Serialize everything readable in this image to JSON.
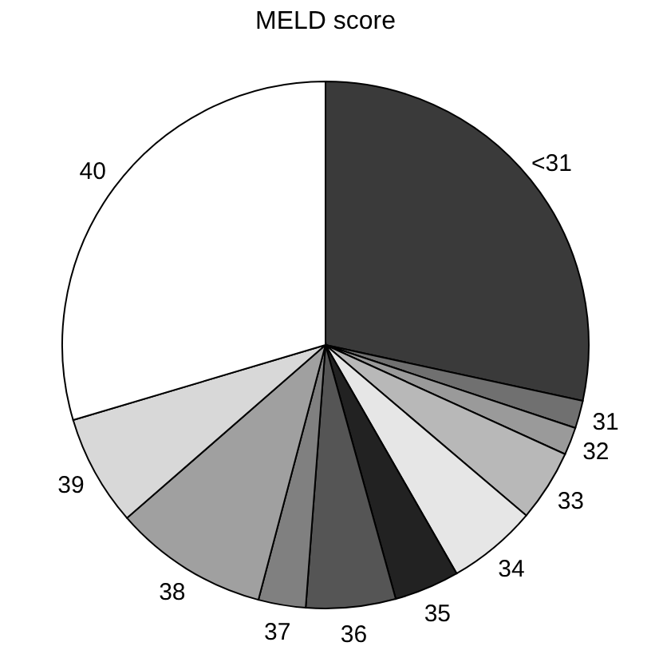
{
  "chart_data": {
    "type": "pie",
    "title": "MELD score",
    "categories": [
      "<31",
      "31",
      "32",
      "33",
      "34",
      "35",
      "36",
      "37",
      "38",
      "39",
      "40"
    ],
    "values": [
      28.4,
      1.7,
      1.7,
      4.4,
      5.5,
      4.0,
      5.5,
      2.9,
      9.5,
      6.8,
      29.6
    ],
    "colors": [
      "#3a3a3a",
      "#707070",
      "#9a9a9a",
      "#b8b8b8",
      "#e6e6e6",
      "#222222",
      "#555555",
      "#808080",
      "#a0a0a0",
      "#d8d8d8",
      "#ffffff"
    ]
  }
}
